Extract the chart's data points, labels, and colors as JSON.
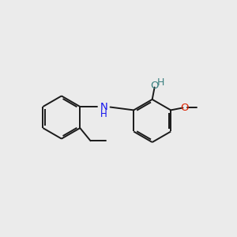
{
  "background_color": "#ebebeb",
  "bond_color": "#1a1a1a",
  "bond_width": 1.4,
  "N_color": "#1010ee",
  "O_color": "#dd2200",
  "OH_color": "#3a8080",
  "figsize": [
    3.0,
    3.0
  ],
  "dpi": 100,
  "xlim": [
    0,
    10
  ],
  "ylim": [
    0,
    10
  ]
}
